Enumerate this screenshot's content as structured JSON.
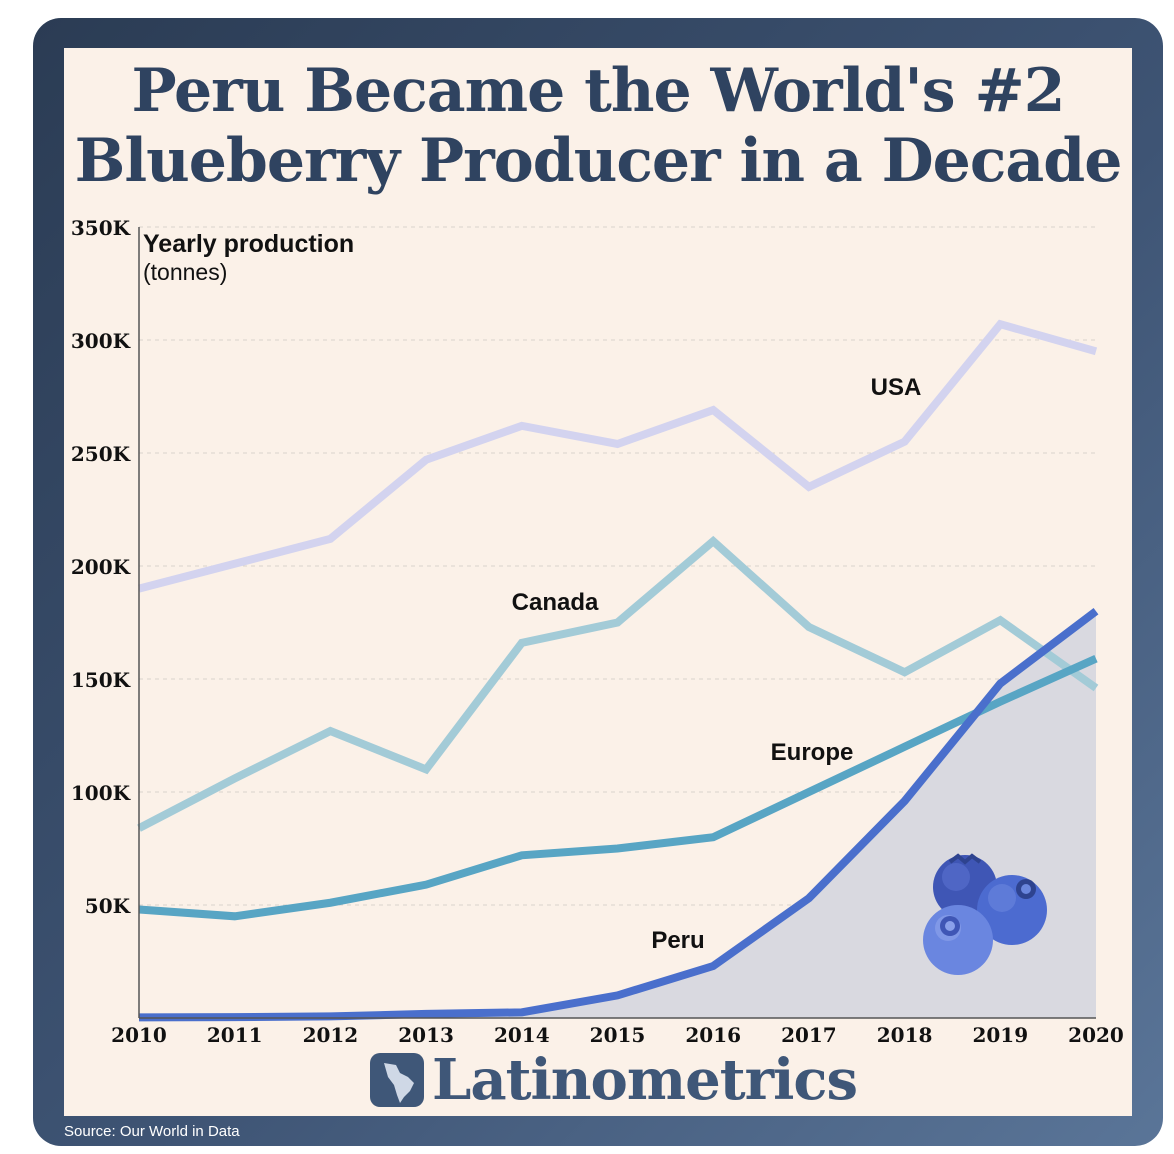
{
  "title_lines": [
    "Peru Became the World's #2",
    "Blueberry Producer in a Decade"
  ],
  "brand": "Latinometrics",
  "source": "Source: Our World in Data",
  "chart_data": {
    "type": "line",
    "title": "Peru Became the World's #2 Blueberry Producer in a Decade",
    "ylabel_lines": [
      "Yearly production",
      "(tonnes)"
    ],
    "x": [
      2010,
      2011,
      2012,
      2013,
      2014,
      2015,
      2016,
      2017,
      2018,
      2019,
      2020
    ],
    "ylim": [
      0,
      350000
    ],
    "yticks": [
      50000,
      100000,
      150000,
      200000,
      250000,
      300000,
      350000
    ],
    "ytick_labels": [
      "50K",
      "100K",
      "150K",
      "200K",
      "250K",
      "300K",
      "350K"
    ],
    "grid": true,
    "series": [
      {
        "name": "USA",
        "color": "#d3d3ef",
        "values": [
          190000,
          201000,
          212000,
          247000,
          262000,
          254000,
          269000,
          235000,
          255000,
          307000,
          295000
        ]
      },
      {
        "name": "Canada",
        "color": "#a3cbd7",
        "values": [
          84000,
          106000,
          127000,
          110000,
          166000,
          175000,
          211000,
          173000,
          153000,
          176000,
          146000
        ]
      },
      {
        "name": "Europe",
        "color": "#58a5c4",
        "values": [
          48000,
          45000,
          51000,
          59000,
          72000,
          75000,
          80000,
          100000,
          120000,
          140000,
          159000
        ]
      },
      {
        "name": "Peru",
        "color": "#4a6fcc",
        "values": [
          300,
          400,
          700,
          1800,
          2500,
          10000,
          23000,
          53000,
          96000,
          148000,
          180000
        ]
      }
    ]
  },
  "icons": {
    "logo": "latin-america-map-icon",
    "illustration": "blueberries-icon"
  }
}
